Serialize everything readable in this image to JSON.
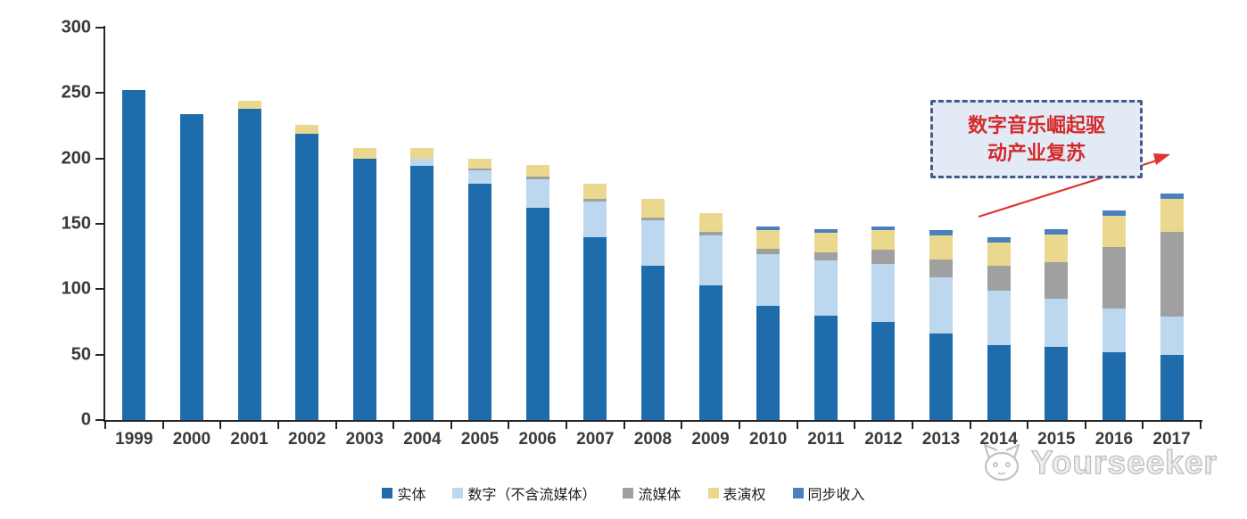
{
  "chart_data": {
    "type": "bar",
    "stacked": true,
    "title": "",
    "xlabel": "",
    "ylabel": "",
    "ylim": [
      0,
      300
    ],
    "y_ticks": [
      0,
      50,
      100,
      150,
      200,
      250,
      300
    ],
    "grid": false,
    "legend_position": "bottom",
    "categories": [
      "1999",
      "2000",
      "2001",
      "2002",
      "2003",
      "2004",
      "2005",
      "2006",
      "2007",
      "2008",
      "2009",
      "2010",
      "2011",
      "2012",
      "2013",
      "2014",
      "2015",
      "2016",
      "2017"
    ],
    "series": [
      {
        "name": "实体",
        "key": "physical",
        "color": "#1F6CAC",
        "values": [
          252,
          234,
          238,
          219,
          200,
          194,
          181,
          162,
          140,
          118,
          103,
          87,
          80,
          75,
          66,
          57,
          56,
          52,
          50
        ]
      },
      {
        "name": "数字（不含流媒体）",
        "key": "digital-excl-streaming",
        "color": "#BDD7EE",
        "values": [
          0,
          0,
          0,
          0,
          0,
          6,
          10,
          22,
          27,
          35,
          38,
          40,
          42,
          44,
          43,
          42,
          37,
          33,
          29
        ]
      },
      {
        "name": "流媒体",
        "key": "streaming",
        "color": "#A0A0A0",
        "values": [
          0,
          0,
          0,
          0,
          0,
          0,
          1,
          2,
          2,
          2,
          3,
          4,
          6,
          11,
          14,
          19,
          28,
          47,
          65
        ]
      },
      {
        "name": "表演权",
        "key": "performance-rights",
        "color": "#EAD88E",
        "values": [
          0,
          0,
          6,
          7,
          8,
          8,
          8,
          9,
          12,
          14,
          14,
          14,
          15,
          15,
          18,
          18,
          21,
          24,
          25
        ]
      },
      {
        "name": "同步收入",
        "key": "sync-revenue",
        "color": "#4A80BD",
        "values": [
          0,
          0,
          0,
          0,
          0,
          0,
          0,
          0,
          0,
          0,
          0,
          3,
          3,
          3,
          4,
          4,
          4,
          4,
          4
        ]
      }
    ]
  },
  "y_axis_labels": [
    "300",
    "250",
    "200",
    "150",
    "100",
    "50",
    "0"
  ],
  "annotation": {
    "lines": [
      "数字音乐崛起驱",
      "动产业复苏"
    ],
    "text_color": "#D42A2A",
    "border_color": "#44598C",
    "fill_color": "#E2EAF6",
    "arrow_color": "#E03434"
  },
  "watermark": {
    "text": "Yourseeker"
  }
}
